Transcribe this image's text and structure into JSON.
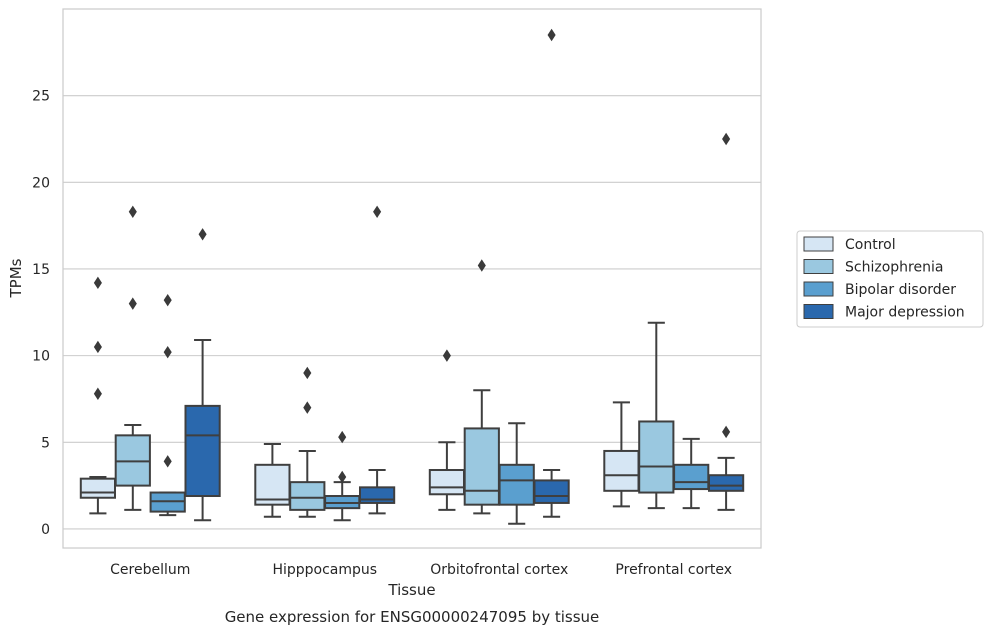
{
  "caption": "Gene expression for ENSG00000247095 by tissue",
  "chart_data": {
    "type": "boxplot",
    "xlabel": "Tissue",
    "ylabel": "TPMs",
    "categories": [
      "Cerebellum",
      "Hipppocampus",
      "Orbitofrontal cortex",
      "Prefrontal cortex"
    ],
    "yticks": [
      0,
      5,
      10,
      15,
      20,
      25
    ],
    "ylim": [
      -1.1,
      30.0
    ],
    "grid": "horizontal",
    "legend_position": "right",
    "series": [
      {
        "name": "Control",
        "color": "#d6e6f4",
        "boxes": [
          {
            "whisker_low": 0.9,
            "q1": 1.8,
            "median": 2.1,
            "q3": 2.9,
            "whisker_high": 3.0,
            "outliers": [
              7.8,
              10.5,
              14.2
            ]
          },
          {
            "whisker_low": 0.7,
            "q1": 1.4,
            "median": 1.7,
            "q3": 3.7,
            "whisker_high": 4.9,
            "outliers": []
          },
          {
            "whisker_low": 1.1,
            "q1": 2.0,
            "median": 2.4,
            "q3": 3.4,
            "whisker_high": 5.0,
            "outliers": [
              10.0
            ]
          },
          {
            "whisker_low": 1.3,
            "q1": 2.2,
            "median": 3.1,
            "q3": 4.5,
            "whisker_high": 7.3,
            "outliers": []
          }
        ]
      },
      {
        "name": "Schizophrenia",
        "color": "#9ac8e0",
        "boxes": [
          {
            "whisker_low": 1.1,
            "q1": 2.5,
            "median": 3.9,
            "q3": 5.4,
            "whisker_high": 6.0,
            "outliers": [
              13.0,
              18.3
            ]
          },
          {
            "whisker_low": 0.7,
            "q1": 1.1,
            "median": 1.8,
            "q3": 2.7,
            "whisker_high": 4.5,
            "outliers": [
              7.0,
              9.0
            ]
          },
          {
            "whisker_low": 0.9,
            "q1": 1.4,
            "median": 2.2,
            "q3": 5.8,
            "whisker_high": 8.0,
            "outliers": [
              15.2
            ]
          },
          {
            "whisker_low": 1.2,
            "q1": 2.1,
            "median": 3.6,
            "q3": 6.2,
            "whisker_high": 11.9,
            "outliers": []
          }
        ]
      },
      {
        "name": "Bipolar disorder",
        "color": "#5a9fcf",
        "boxes": [
          {
            "whisker_low": 0.8,
            "q1": 1.0,
            "median": 1.6,
            "q3": 2.1,
            "whisker_high": 2.1,
            "outliers": [
              3.9,
              10.2,
              13.2
            ]
          },
          {
            "whisker_low": 0.5,
            "q1": 1.2,
            "median": 1.5,
            "q3": 1.9,
            "whisker_high": 2.7,
            "outliers": [
              3.0,
              5.3
            ]
          },
          {
            "whisker_low": 0.3,
            "q1": 1.4,
            "median": 2.8,
            "q3": 3.7,
            "whisker_high": 6.1,
            "outliers": []
          },
          {
            "whisker_low": 1.2,
            "q1": 2.3,
            "median": 2.7,
            "q3": 3.7,
            "whisker_high": 5.2,
            "outliers": []
          }
        ]
      },
      {
        "name": "Major depression",
        "color": "#2a68ad",
        "boxes": [
          {
            "whisker_low": 0.5,
            "q1": 1.9,
            "median": 5.4,
            "q3": 7.1,
            "whisker_high": 10.9,
            "outliers": [
              17.0
            ]
          },
          {
            "whisker_low": 0.9,
            "q1": 1.5,
            "median": 1.7,
            "q3": 2.4,
            "whisker_high": 3.4,
            "outliers": [
              18.3
            ]
          },
          {
            "whisker_low": 0.7,
            "q1": 1.5,
            "median": 1.9,
            "q3": 2.8,
            "whisker_high": 3.4,
            "outliers": [
              28.5
            ]
          },
          {
            "whisker_low": 1.1,
            "q1": 2.2,
            "median": 2.5,
            "q3": 3.1,
            "whisker_high": 4.1,
            "outliers": [
              5.6,
              22.5
            ]
          }
        ]
      }
    ]
  }
}
